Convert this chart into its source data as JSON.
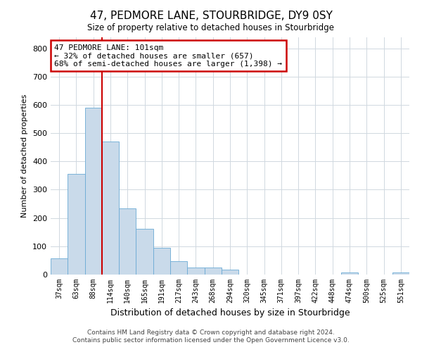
{
  "title": "47, PEDMORE LANE, STOURBRIDGE, DY9 0SY",
  "subtitle": "Size of property relative to detached houses in Stourbridge",
  "xlabel": "Distribution of detached houses by size in Stourbridge",
  "ylabel": "Number of detached properties",
  "bar_labels": [
    "37sqm",
    "63sqm",
    "88sqm",
    "114sqm",
    "140sqm",
    "165sqm",
    "191sqm",
    "217sqm",
    "243sqm",
    "268sqm",
    "294sqm",
    "320sqm",
    "345sqm",
    "371sqm",
    "397sqm",
    "422sqm",
    "448sqm",
    "474sqm",
    "500sqm",
    "525sqm",
    "551sqm"
  ],
  "bar_values": [
    58,
    355,
    590,
    470,
    233,
    163,
    95,
    48,
    25,
    25,
    18,
    0,
    0,
    0,
    0,
    0,
    0,
    8,
    0,
    0,
    8
  ],
  "bar_color": "#c9daea",
  "bar_edge_color": "#6aaad4",
  "vline_color": "#cc0000",
  "annotation_text": "47 PEDMORE LANE: 101sqm\n← 32% of detached houses are smaller (657)\n68% of semi-detached houses are larger (1,398) →",
  "annotation_box_color": "#ffffff",
  "annotation_box_edge_color": "#cc0000",
  "ylim": [
    0,
    840
  ],
  "yticks": [
    0,
    100,
    200,
    300,
    400,
    500,
    600,
    700,
    800
  ],
  "footer_line1": "Contains HM Land Registry data © Crown copyright and database right 2024.",
  "footer_line2": "Contains public sector information licensed under the Open Government Licence v3.0.",
  "bg_color": "#ffffff",
  "grid_color": "#d0d8e0"
}
